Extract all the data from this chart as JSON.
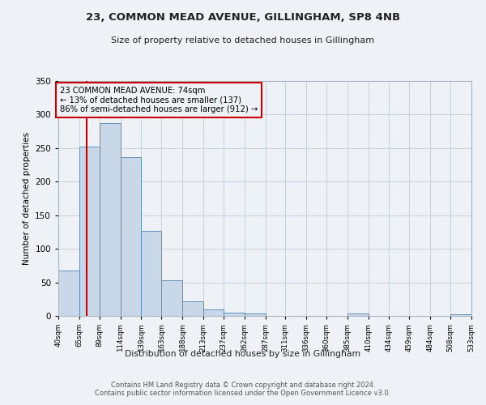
{
  "title1": "23, COMMON MEAD AVENUE, GILLINGHAM, SP8 4NB",
  "title2": "Size of property relative to detached houses in Gillingham",
  "xlabel": "Distribution of detached houses by size in Gillingham",
  "ylabel": "Number of detached properties",
  "bar_edges": [
    40,
    65,
    89,
    114,
    139,
    163,
    188,
    213,
    237,
    262,
    287,
    311,
    336,
    360,
    385,
    410,
    434,
    459,
    484,
    508,
    533
  ],
  "bar_heights": [
    68,
    252,
    287,
    237,
    127,
    53,
    22,
    10,
    5,
    4,
    0,
    0,
    0,
    0,
    4,
    0,
    0,
    0,
    0,
    3
  ],
  "bar_color": "#c8d8e8",
  "bar_edge_color": "#6090b8",
  "grid_color": "#c8d0d8",
  "property_line_x": 74,
  "property_line_color": "#cc0000",
  "annotation_text": "23 COMMON MEAD AVENUE: 74sqm\n← 13% of detached houses are smaller (137)\n86% of semi-detached houses are larger (912) →",
  "annotation_box_color": "#cc0000",
  "ylim": [
    0,
    350
  ],
  "yticks": [
    0,
    50,
    100,
    150,
    200,
    250,
    300,
    350
  ],
  "tick_labels": [
    "40sqm",
    "65sqm",
    "89sqm",
    "114sqm",
    "139sqm",
    "163sqm",
    "188sqm",
    "213sqm",
    "237sqm",
    "262sqm",
    "287sqm",
    "311sqm",
    "336sqm",
    "360sqm",
    "385sqm",
    "410sqm",
    "434sqm",
    "459sqm",
    "484sqm",
    "508sqm",
    "533sqm"
  ],
  "footer_text": "Contains HM Land Registry data © Crown copyright and database right 2024.\nContains public sector information licensed under the Open Government Licence v3.0.",
  "bg_color": "#eef2f6"
}
